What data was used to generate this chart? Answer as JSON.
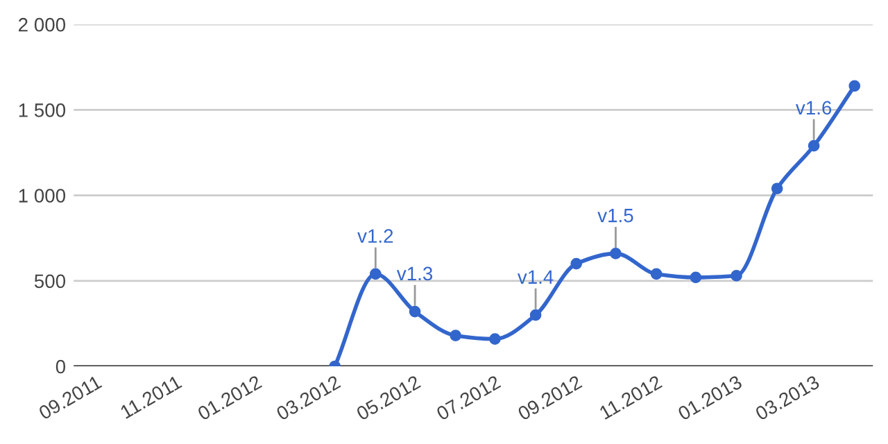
{
  "chart_data": {
    "type": "line",
    "x": [
      "2012-03",
      "2012-04",
      "2012-05",
      "2012-06",
      "2012-07",
      "2012-08",
      "2012-09",
      "2012-10",
      "2012-11",
      "2012-12",
      "2013-01",
      "2013-02",
      "2013-03",
      "2013-04"
    ],
    "series": [
      {
        "color": "#3366cc",
        "values": [
          0,
          540,
          320,
          180,
          160,
          300,
          600,
          660,
          540,
          520,
          530,
          1040,
          1290,
          1640
        ]
      }
    ],
    "xlim": [
      "2011-08-15",
      "2013-04-15"
    ],
    "xticks": [
      {
        "value": "2011-09",
        "label": "09.2011"
      },
      {
        "value": "2011-11",
        "label": "11.2011"
      },
      {
        "value": "2012-01",
        "label": "01.2012"
      },
      {
        "value": "2012-03",
        "label": "03.2012"
      },
      {
        "value": "2012-05",
        "label": "05.2012"
      },
      {
        "value": "2012-07",
        "label": "07.2012"
      },
      {
        "value": "2012-09",
        "label": "09.2012"
      },
      {
        "value": "2012-11",
        "label": "11.2012"
      },
      {
        "value": "2013-01",
        "label": "01.2013"
      },
      {
        "value": "2013-03",
        "label": "03.2013"
      }
    ],
    "ylim": [
      0,
      2000
    ],
    "yticks": [
      0,
      500,
      {
        "value": 1000,
        "label": "1 000"
      },
      {
        "value": 1500,
        "label": "1 500"
      },
      {
        "value": 2000,
        "label": "2 000"
      }
    ],
    "annotations": [
      {
        "text": "v1.2",
        "x": "2012-04",
        "y": 540
      },
      {
        "text": "v1.3",
        "x": "2012-05",
        "y": 320
      },
      {
        "text": "v1.4",
        "x": "2012-08",
        "y": 300
      },
      {
        "text": "v1.5",
        "x": "2012-10",
        "y": 660
      },
      {
        "text": "v1.6",
        "x": "2013-03",
        "y": 1290
      }
    ],
    "grid": "y",
    "marker": "circle",
    "line_style": "solid",
    "legend": false
  }
}
